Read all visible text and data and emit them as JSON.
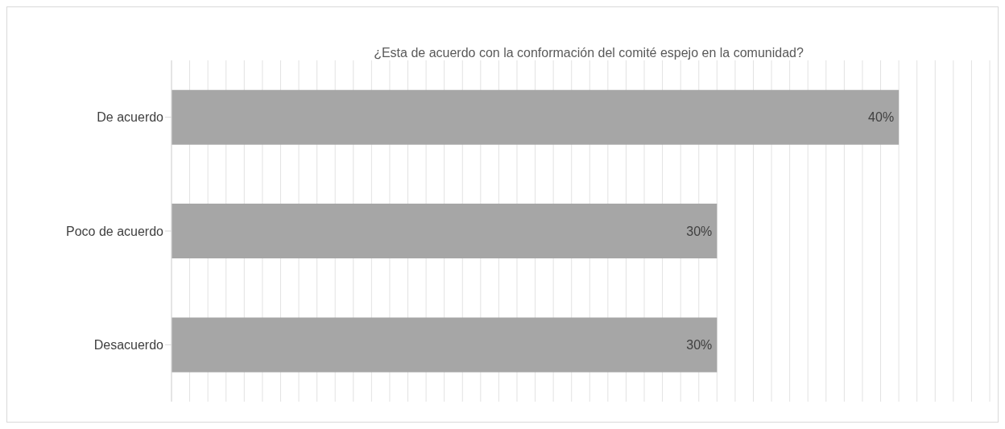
{
  "chart_data": {
    "type": "bar",
    "orientation": "horizontal",
    "title": "¿Esta de acuerdo con la conformación del comité espejo en la comunidad?",
    "categories": [
      "De acuerdo",
      "Poco de acuerdo",
      "Desacuerdo"
    ],
    "values": [
      40,
      30,
      30
    ],
    "value_labels": [
      "40%",
      "30%",
      "30%"
    ],
    "color": "#a6a6a6",
    "grid": "x",
    "tick_labels": "y"
  }
}
